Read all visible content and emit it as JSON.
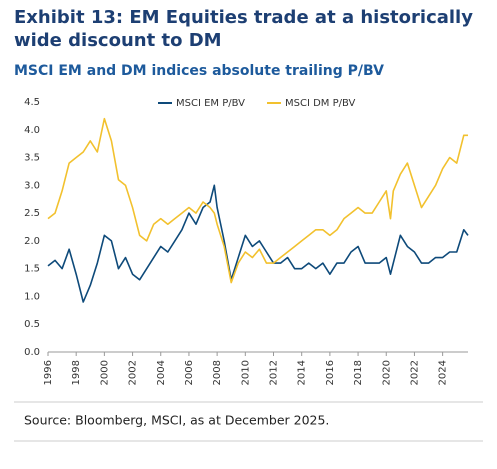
{
  "chart_data": {
    "type": "line",
    "title": "Exhibit 13: EM Equities trade at a historically wide discount to DM",
    "subtitle": "MSCI EM and DM indices absolute trailing P/BV",
    "source": "Source: Bloomberg, MSCI, as at December 2025.",
    "x": [
      1996,
      1996.5,
      1997,
      1997.5,
      1998,
      1998.5,
      1999,
      1999.5,
      2000,
      2000.5,
      2001,
      2001.5,
      2002,
      2002.5,
      2003,
      2003.5,
      2004,
      2004.5,
      2005,
      2005.5,
      2006,
      2006.5,
      2007,
      2007.5,
      2007.8,
      2008,
      2008.5,
      2009,
      2009.5,
      2010,
      2010.5,
      2011,
      2011.5,
      2012,
      2012.5,
      2013,
      2013.5,
      2014,
      2014.5,
      2015,
      2015.5,
      2016,
      2016.5,
      2017,
      2017.5,
      2018,
      2018.5,
      2019,
      2019.5,
      2020,
      2020.3,
      2020.5,
      2021,
      2021.5,
      2022,
      2022.5,
      2023,
      2023.5,
      2024,
      2024.5,
      2025,
      2025.5,
      2025.8
    ],
    "series": [
      {
        "name": "MSCI EM P/BV",
        "color": "#0e4a7a",
        "values": [
          1.55,
          1.65,
          1.5,
          1.85,
          1.4,
          0.9,
          1.2,
          1.6,
          2.1,
          2.0,
          1.5,
          1.7,
          1.4,
          1.3,
          1.5,
          1.7,
          1.9,
          1.8,
          2.0,
          2.2,
          2.5,
          2.3,
          2.6,
          2.7,
          3.0,
          2.6,
          2.0,
          1.3,
          1.7,
          2.1,
          1.9,
          2.0,
          1.8,
          1.6,
          1.6,
          1.7,
          1.5,
          1.5,
          1.6,
          1.5,
          1.6,
          1.4,
          1.6,
          1.6,
          1.8,
          1.9,
          1.6,
          1.6,
          1.6,
          1.7,
          1.4,
          1.6,
          2.1,
          1.9,
          1.8,
          1.6,
          1.6,
          1.7,
          1.7,
          1.8,
          1.8,
          2.2,
          2.1
        ]
      },
      {
        "name": "MSCI DM P/BV",
        "color": "#f2c12e",
        "values": [
          2.4,
          2.5,
          2.9,
          3.4,
          3.5,
          3.6,
          3.8,
          3.6,
          4.2,
          3.8,
          3.1,
          3.0,
          2.6,
          2.1,
          2.0,
          2.3,
          2.4,
          2.3,
          2.4,
          2.5,
          2.6,
          2.5,
          2.7,
          2.6,
          2.5,
          2.3,
          1.9,
          1.25,
          1.6,
          1.8,
          1.7,
          1.85,
          1.6,
          1.6,
          1.7,
          1.8,
          1.9,
          2.0,
          2.1,
          2.2,
          2.2,
          2.1,
          2.2,
          2.4,
          2.5,
          2.6,
          2.5,
          2.5,
          2.7,
          2.9,
          2.4,
          2.9,
          3.2,
          3.4,
          3.0,
          2.6,
          2.8,
          3.0,
          3.3,
          3.5,
          3.4,
          3.9,
          3.9
        ]
      }
    ],
    "xlim": [
      1996,
      2025.8
    ],
    "xticks": [
      1996,
      1998,
      2000,
      2002,
      2004,
      2006,
      2008,
      2010,
      2012,
      2014,
      2016,
      2018,
      2020,
      2022,
      2024
    ],
    "ylim": [
      0,
      4.5
    ],
    "yticks": [
      {
        "value": 0,
        "label": "0.0"
      },
      0.5,
      {
        "value": 1,
        "label": "1.0"
      },
      1.5,
      {
        "value": 2,
        "label": "2.0"
      },
      2.5,
      {
        "value": 3,
        "label": "3.0"
      },
      3.5,
      {
        "value": 4,
        "label": "4.0"
      },
      4.5
    ],
    "grid": false
  }
}
